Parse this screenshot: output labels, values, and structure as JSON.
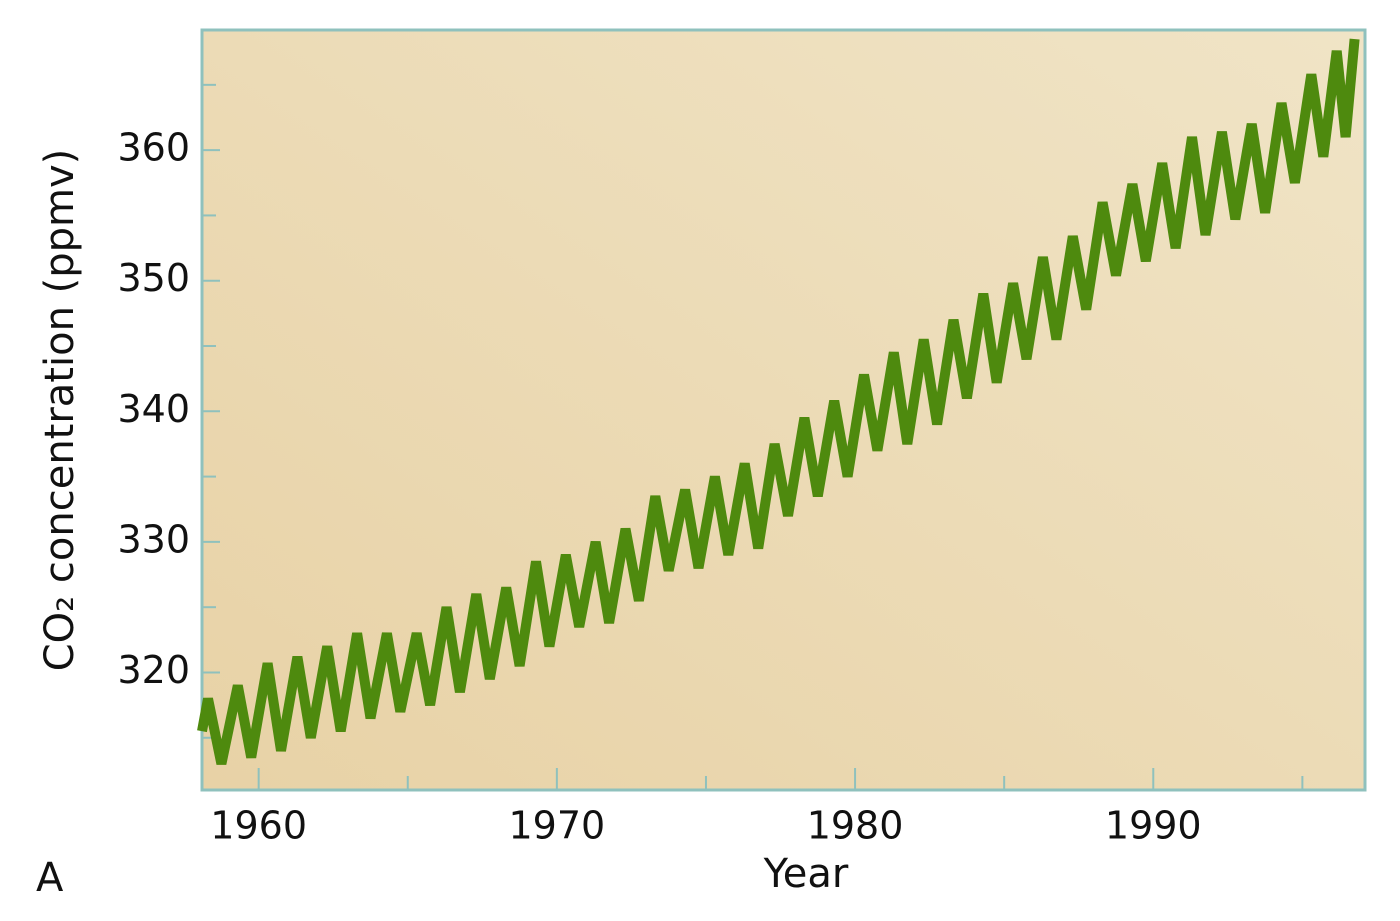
{
  "chart_data": {
    "type": "line",
    "y_label": "CO₂ concentration (ppmv)",
    "x_label": "Year",
    "annotation": "A",
    "x": [
      1958.1,
      1958.3,
      1958.75,
      1959.3,
      1959.75,
      1960.3,
      1960.75,
      1961.3,
      1961.75,
      1962.3,
      1962.75,
      1963.3,
      1963.75,
      1964.3,
      1964.75,
      1965.3,
      1965.75,
      1966.3,
      1966.75,
      1967.3,
      1967.75,
      1968.3,
      1968.75,
      1969.3,
      1969.75,
      1970.3,
      1970.75,
      1971.3,
      1971.75,
      1972.3,
      1972.75,
      1973.3,
      1973.75,
      1974.3,
      1974.75,
      1975.3,
      1975.75,
      1976.3,
      1976.75,
      1977.3,
      1977.75,
      1978.3,
      1978.75,
      1979.3,
      1979.75,
      1980.3,
      1980.75,
      1981.3,
      1981.75,
      1982.3,
      1982.75,
      1983.3,
      1983.75,
      1984.3,
      1984.75,
      1985.3,
      1985.75,
      1986.3,
      1986.75,
      1987.3,
      1987.75,
      1988.3,
      1988.75,
      1989.3,
      1989.75,
      1990.3,
      1990.75,
      1991.3,
      1991.75,
      1992.3,
      1992.75,
      1993.3,
      1993.75,
      1994.3,
      1994.75,
      1995.3,
      1995.7,
      1996.15,
      1996.45,
      1996.75
    ],
    "series": [
      {
        "color": "#4e8a0e",
        "values": [
          315.5,
          318,
          313,
          319,
          313.5,
          320.7,
          314,
          321.2,
          315,
          322,
          315.5,
          323,
          316.5,
          323,
          317,
          323,
          317.5,
          325,
          318.5,
          326,
          319.5,
          326.5,
          320.5,
          328.5,
          322,
          329,
          323.5,
          330,
          323.8,
          331,
          325.5,
          333.5,
          327.8,
          334,
          328,
          335,
          329,
          336,
          329.5,
          337.5,
          332,
          339.5,
          333.5,
          340.8,
          335,
          342.8,
          337,
          344.5,
          337.5,
          345.5,
          339,
          347,
          341,
          349,
          342.2,
          349.8,
          344,
          351.8,
          345.5,
          353.4,
          347.8,
          356,
          350.4,
          357.4,
          351.5,
          359,
          352.5,
          361,
          353.5,
          361.4,
          354.7,
          362,
          355.2,
          363.6,
          357.5,
          365.8,
          359.5,
          367.6,
          361,
          368.5
        ]
      }
    ],
    "xlim": [
      1958.1,
      1997.1
    ],
    "xticks": [
      1960,
      1970,
      1980,
      1990
    ],
    "xminorticks": [
      1965,
      1975,
      1985,
      1995
    ],
    "ylim": [
      311,
      369.2
    ],
    "yticks": [
      320,
      330,
      340,
      350,
      360
    ],
    "yminorticks": [
      315,
      325,
      335,
      345,
      355,
      365
    ]
  }
}
